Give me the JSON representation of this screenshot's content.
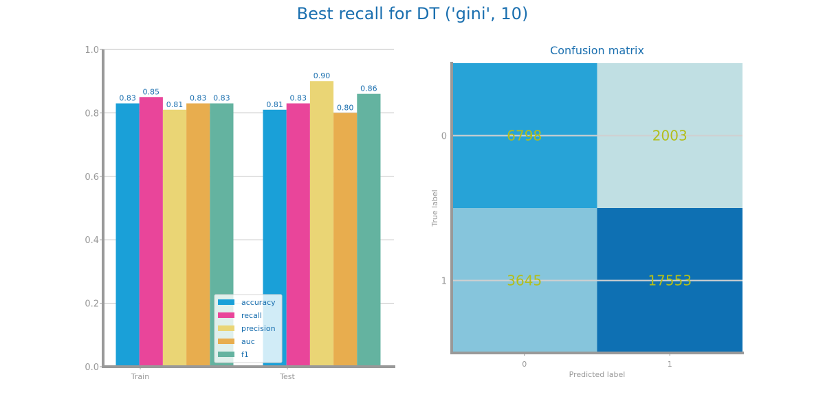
{
  "figure": {
    "title": "Best recall for DT ('gini', 10)"
  },
  "chart_data": [
    {
      "type": "bar",
      "categories": [
        "Train",
        "Test"
      ],
      "series": [
        {
          "name": "accuracy",
          "values": [
            0.83,
            0.81
          ],
          "labels": [
            "0.83",
            "0.81"
          ],
          "color": "#1aa0d8"
        },
        {
          "name": "recall",
          "values": [
            0.85,
            0.83
          ],
          "labels": [
            "0.85",
            "0.83"
          ],
          "color": "#e9459a"
        },
        {
          "name": "precision",
          "values": [
            0.81,
            0.9
          ],
          "labels": [
            "0.81",
            "0.90"
          ],
          "color": "#ead575"
        },
        {
          "name": "auc",
          "values": [
            0.83,
            0.8
          ],
          "labels": [
            "0.83",
            "0.80"
          ],
          "color": "#e8ad4e"
        },
        {
          "name": "f1",
          "values": [
            0.83,
            0.86
          ],
          "labels": [
            "0.83",
            "0.86"
          ],
          "color": "#64b3a0"
        }
      ],
      "ylim": [
        0,
        1
      ],
      "yticks": [
        "0.0",
        "0.2",
        "0.4",
        "0.6",
        "0.8",
        "1.0"
      ],
      "grid": true,
      "legend_position": "lower-right",
      "label_color": "#1a6faf"
    },
    {
      "type": "heatmap",
      "title": "Confusion matrix",
      "xlabel": "Predicted label",
      "ylabel": "True label",
      "x_ticks": [
        "0",
        "1"
      ],
      "y_ticks": [
        "0",
        "1"
      ],
      "matrix": [
        [
          6798,
          2003
        ],
        [
          3645,
          17553
        ]
      ],
      "cell_colors": [
        [
          "#27a3d7",
          "#c0dfe3"
        ],
        [
          "#86c5dc",
          "#0e70b3"
        ]
      ],
      "value_color": "#b2be1c"
    }
  ]
}
